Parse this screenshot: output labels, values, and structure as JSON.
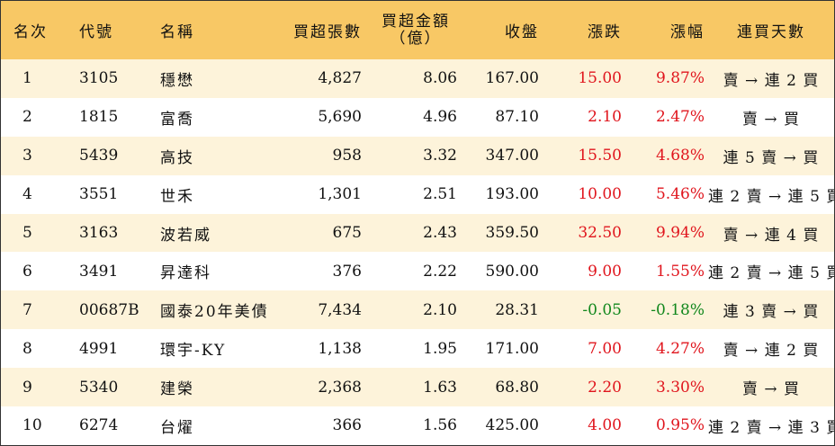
{
  "headers": {
    "rank": "名次",
    "code": "代號",
    "name": "名稱",
    "buy_lots": "買超張數",
    "buy_amount_line1": "買超金額",
    "buy_amount_line2": "（億）",
    "close": "收盤",
    "change": "漲跌",
    "pct": "漲幅",
    "streak": "連買天數"
  },
  "colors": {
    "header_bg": "#f8c865",
    "row_alt_bg": "#fdf3da",
    "up": "#e0151d",
    "down": "#11871c"
  },
  "rows": [
    {
      "rank": "1",
      "code": "3105",
      "name": "穩懋",
      "buy_lots": "4,827",
      "buy_amount": "8.06",
      "close": "167.00",
      "change": "15.00",
      "pct": "9.87%",
      "streak": "賣 → 連 2 買",
      "direction": "up"
    },
    {
      "rank": "2",
      "code": "1815",
      "name": "富喬",
      "buy_lots": "5,690",
      "buy_amount": "4.96",
      "close": "87.10",
      "change": "2.10",
      "pct": "2.47%",
      "streak": "賣 → 買",
      "direction": "up"
    },
    {
      "rank": "3",
      "code": "5439",
      "name": "高技",
      "buy_lots": "958",
      "buy_amount": "3.32",
      "close": "347.00",
      "change": "15.50",
      "pct": "4.68%",
      "streak": "連 5 賣 → 買",
      "direction": "up"
    },
    {
      "rank": "4",
      "code": "3551",
      "name": "世禾",
      "buy_lots": "1,301",
      "buy_amount": "2.51",
      "close": "193.00",
      "change": "10.00",
      "pct": "5.46%",
      "streak": "連 2 賣 → 連 5 買",
      "direction": "up"
    },
    {
      "rank": "5",
      "code": "3163",
      "name": "波若威",
      "buy_lots": "675",
      "buy_amount": "2.43",
      "close": "359.50",
      "change": "32.50",
      "pct": "9.94%",
      "streak": "賣 → 連 4 買",
      "direction": "up"
    },
    {
      "rank": "6",
      "code": "3491",
      "name": "昇達科",
      "buy_lots": "376",
      "buy_amount": "2.22",
      "close": "590.00",
      "change": "9.00",
      "pct": "1.55%",
      "streak": "連 2 賣 → 連 5 買",
      "direction": "up"
    },
    {
      "rank": "7",
      "code": "00687B",
      "name": "國泰20年美債",
      "buy_lots": "7,434",
      "buy_amount": "2.10",
      "close": "28.31",
      "change": "-0.05",
      "pct": "-0.18%",
      "streak": "連 3 賣 → 買",
      "direction": "down"
    },
    {
      "rank": "8",
      "code": "4991",
      "name": "環宇-KY",
      "buy_lots": "1,138",
      "buy_amount": "1.95",
      "close": "171.00",
      "change": "7.00",
      "pct": "4.27%",
      "streak": "賣 → 連 2 買",
      "direction": "up"
    },
    {
      "rank": "9",
      "code": "5340",
      "name": "建榮",
      "buy_lots": "2,368",
      "buy_amount": "1.63",
      "close": "68.80",
      "change": "2.20",
      "pct": "3.30%",
      "streak": "賣 → 買",
      "direction": "up"
    },
    {
      "rank": "10",
      "code": "6274",
      "name": "台燿",
      "buy_lots": "366",
      "buy_amount": "1.56",
      "close": "425.00",
      "change": "4.00",
      "pct": "0.95%",
      "streak": "連 2 賣 → 連 3 買",
      "direction": "up"
    }
  ]
}
